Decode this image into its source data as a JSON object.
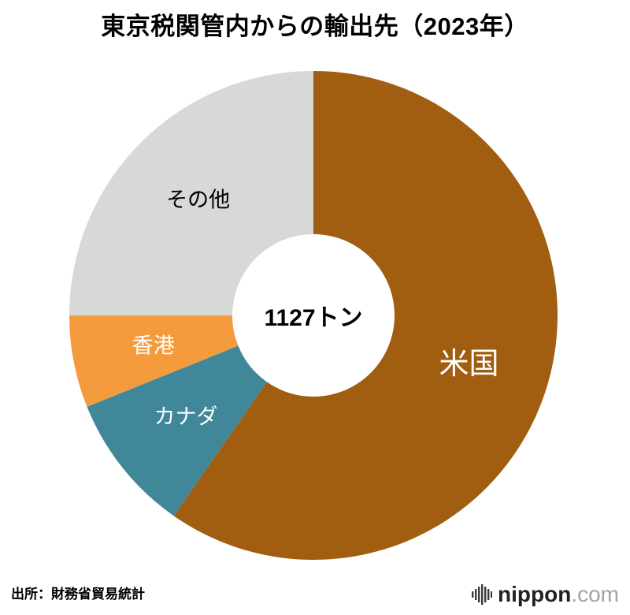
{
  "title": "東京税関管内からの輸出先（2023年）",
  "source": "出所：財務省貿易統計",
  "center_label": "1127トン",
  "logo": {
    "name": "nippon",
    "tld": ".com"
  },
  "chart_data": {
    "type": "pie",
    "donut": true,
    "title": "東京税関管内からの輸出先（2023年）",
    "center_total_label": "1127トン",
    "start_angle_deg": 0,
    "direction": "clockwise",
    "series": [
      {
        "label": "米国",
        "percent": 59.7,
        "color": "#A15E10",
        "label_color": "#ffffff"
      },
      {
        "label": "カナダ",
        "percent": 9.2,
        "color": "#3F8799",
        "label_color": "#ffffff"
      },
      {
        "label": "香港",
        "percent": 6.1,
        "color": "#F49B3E",
        "label_color": "#ffffff"
      },
      {
        "label": "その他",
        "percent": 25.0,
        "color": "#D8D8D8",
        "label_color": "#000000"
      }
    ]
  }
}
